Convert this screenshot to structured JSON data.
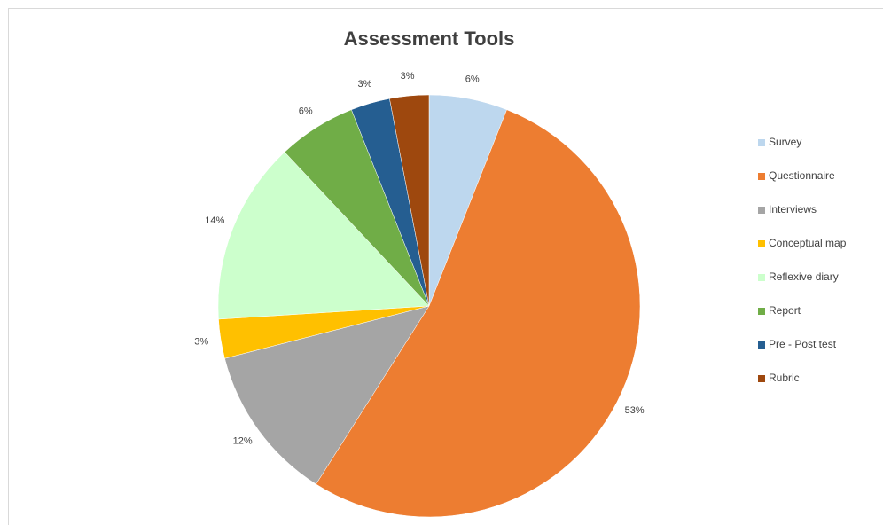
{
  "chart_data": {
    "type": "pie",
    "title": "Assessment Tools",
    "categories": [
      "Survey",
      "Questionnaire",
      "Interviews",
      "Conceptual map",
      "Reflexive diary",
      "Report",
      "Pre - Post test",
      "Rubric"
    ],
    "values": [
      6,
      53,
      12,
      3,
      14,
      6,
      3,
      3
    ],
    "value_labels": [
      "6%",
      "53%",
      "12%",
      "3%",
      "14%",
      "6%",
      "3%",
      "3%"
    ],
    "colors": [
      "#bdd7ee",
      "#ed7d31",
      "#a5a5a5",
      "#ffc000",
      "#ccffcc",
      "#70ad47",
      "#255e91",
      "#9e480e"
    ],
    "legend": "right"
  }
}
